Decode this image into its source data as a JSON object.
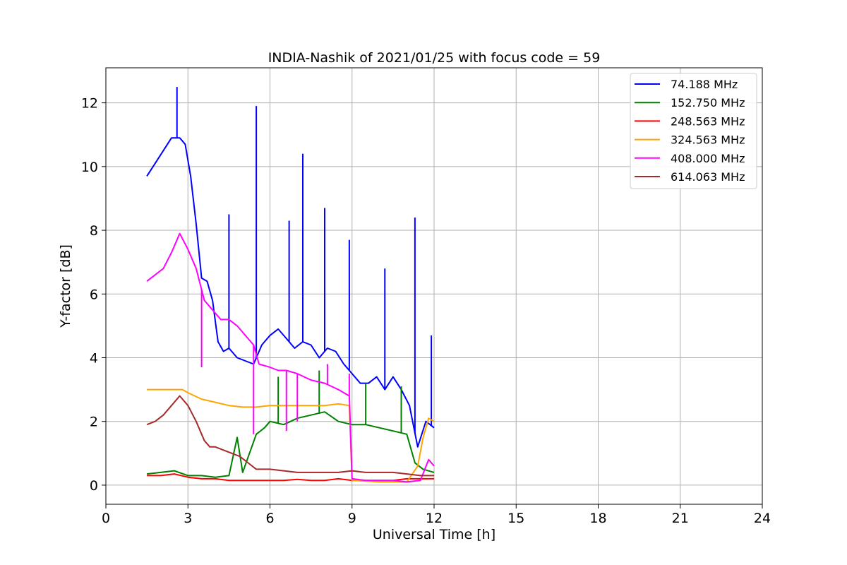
{
  "chart_data": {
    "type": "line",
    "title": "INDIA-Nashik of 2021/01/25 with focus code = 59",
    "xlabel": "Universal Time [h]",
    "ylabel": "Y-factor [dB]",
    "xlim": [
      0,
      24
    ],
    "ylim": [
      -0.6,
      13.1
    ],
    "xticks": [
      0,
      3,
      6,
      9,
      12,
      15,
      18,
      21,
      24
    ],
    "xtick_labels": [
      "0",
      "3",
      "6",
      "9",
      "12",
      "15",
      "18",
      "21",
      "24"
    ],
    "yticks": [
      0,
      2,
      4,
      6,
      8,
      10,
      12
    ],
    "ytick_labels": [
      "0",
      "2",
      "4",
      "6",
      "8",
      "10",
      "12"
    ],
    "grid": true,
    "legend_position": "top-right",
    "series": [
      {
        "name": " 74.188 MHz",
        "color": "#0000ff",
        "x": [
          1.5,
          1.8,
          2.1,
          2.4,
          2.7,
          2.9,
          3.1,
          3.3,
          3.5,
          3.7,
          3.9,
          4.1,
          4.3,
          4.5,
          4.8,
          5.1,
          5.4,
          5.7,
          6.0,
          6.3,
          6.6,
          6.9,
          7.2,
          7.5,
          7.8,
          8.1,
          8.4,
          8.7,
          9.0,
          9.3,
          9.6,
          9.9,
          10.2,
          10.5,
          10.8,
          11.1,
          11.4,
          11.7,
          12.0
        ],
        "y": [
          9.7,
          10.1,
          10.5,
          10.9,
          10.9,
          10.7,
          9.7,
          8.2,
          6.5,
          6.4,
          5.8,
          4.5,
          4.2,
          4.3,
          4.0,
          3.9,
          3.8,
          4.4,
          4.7,
          4.9,
          4.6,
          4.3,
          4.5,
          4.4,
          4.0,
          4.3,
          4.2,
          3.8,
          3.5,
          3.2,
          3.2,
          3.4,
          3.0,
          3.4,
          3.0,
          2.5,
          1.2,
          2.0,
          1.8
        ],
        "spikes": [
          [
            2.6,
            12.5
          ],
          [
            5.5,
            11.9
          ],
          [
            7.2,
            10.4
          ],
          [
            8.0,
            8.7
          ],
          [
            4.5,
            8.5
          ],
          [
            6.7,
            8.3
          ],
          [
            8.9,
            7.7
          ],
          [
            10.2,
            6.8
          ],
          [
            11.3,
            8.4
          ],
          [
            11.9,
            4.7
          ]
        ]
      },
      {
        "name": "152.750 MHz",
        "color": "#008000",
        "x": [
          1.5,
          2.0,
          2.5,
          3.0,
          3.5,
          4.0,
          4.5,
          4.8,
          5.0,
          5.5,
          5.8,
          6.0,
          6.5,
          7.0,
          7.5,
          8.0,
          8.5,
          9.0,
          9.5,
          10.0,
          10.5,
          11.0,
          11.3,
          11.6,
          12.0
        ],
        "y": [
          0.35,
          0.4,
          0.45,
          0.3,
          0.3,
          0.25,
          0.3,
          1.5,
          0.4,
          1.6,
          1.8,
          2.0,
          1.9,
          2.1,
          2.2,
          2.3,
          2.0,
          1.9,
          1.9,
          1.8,
          1.7,
          1.6,
          0.7,
          0.5,
          0.4
        ],
        "spikes": [
          [
            7.8,
            3.6
          ],
          [
            6.3,
            3.4
          ],
          [
            9.5,
            3.2
          ],
          [
            10.8,
            3.1
          ]
        ]
      },
      {
        "name": "248.563 MHz",
        "color": "#ff0000",
        "x": [
          1.5,
          2.0,
          2.5,
          3.0,
          3.5,
          4.0,
          4.5,
          5.0,
          5.5,
          6.0,
          6.5,
          7.0,
          7.5,
          8.0,
          8.5,
          9.0,
          9.5,
          10.0,
          10.5,
          11.0,
          11.5,
          12.0
        ],
        "y": [
          0.3,
          0.3,
          0.35,
          0.25,
          0.2,
          0.2,
          0.15,
          0.15,
          0.15,
          0.15,
          0.15,
          0.18,
          0.15,
          0.15,
          0.2,
          0.15,
          0.15,
          0.15,
          0.15,
          0.2,
          0.2,
          0.2
        ]
      },
      {
        "name": "324.563 MHz",
        "color": "#ffa500",
        "x": [
          1.5,
          2.0,
          2.5,
          2.8,
          3.0,
          3.5,
          4.0,
          4.5,
          5.0,
          5.5,
          6.0,
          6.5,
          7.0,
          7.5,
          8.0,
          8.5,
          8.9,
          9.0,
          10.0,
          11.0,
          11.4,
          11.6,
          11.8,
          12.0
        ],
        "y": [
          3.0,
          3.0,
          3.0,
          3.0,
          2.9,
          2.7,
          2.6,
          2.5,
          2.45,
          2.45,
          2.5,
          2.5,
          2.5,
          2.5,
          2.5,
          2.55,
          2.5,
          0.15,
          0.1,
          0.1,
          0.6,
          1.5,
          2.1,
          2.0
        ]
      },
      {
        "name": "408.000 MHz",
        "color": "#ff00ff",
        "x": [
          1.5,
          1.8,
          2.1,
          2.4,
          2.7,
          3.0,
          3.3,
          3.6,
          3.9,
          4.2,
          4.5,
          4.8,
          5.1,
          5.4,
          5.6,
          6.0,
          6.3,
          6.6,
          7.0,
          7.5,
          8.0,
          8.5,
          8.9,
          9.0,
          9.5,
          10.0,
          10.5,
          11.0,
          11.5,
          11.8,
          12.0
        ],
        "y": [
          6.4,
          6.6,
          6.8,
          7.3,
          7.9,
          7.4,
          6.8,
          5.8,
          5.5,
          5.2,
          5.2,
          5.0,
          4.7,
          4.4,
          3.8,
          3.7,
          3.6,
          3.6,
          3.5,
          3.3,
          3.2,
          3.0,
          2.8,
          0.2,
          0.15,
          0.15,
          0.15,
          0.1,
          0.15,
          0.8,
          0.6
        ],
        "spikes": [
          [
            3.5,
            3.7
          ],
          [
            5.4,
            1.6
          ],
          [
            6.6,
            1.7
          ],
          [
            7.0,
            2.0
          ],
          [
            8.1,
            3.8
          ],
          [
            8.9,
            3.5
          ]
        ]
      },
      {
        "name": "614.063 MHz",
        "color": "#a52a2a",
        "x": [
          1.5,
          1.8,
          2.1,
          2.4,
          2.7,
          3.0,
          3.3,
          3.6,
          3.8,
          4.0,
          4.3,
          4.6,
          4.9,
          5.2,
          5.5,
          5.8,
          6.0,
          6.5,
          7.0,
          7.5,
          8.0,
          8.5,
          9.0,
          9.5,
          10.0,
          10.5,
          11.0,
          11.5,
          12.0
        ],
        "y": [
          1.9,
          2.0,
          2.2,
          2.5,
          2.8,
          2.5,
          2.0,
          1.4,
          1.2,
          1.2,
          1.1,
          1.0,
          0.9,
          0.7,
          0.5,
          0.5,
          0.5,
          0.45,
          0.4,
          0.4,
          0.4,
          0.4,
          0.45,
          0.4,
          0.4,
          0.4,
          0.35,
          0.3,
          0.3
        ]
      }
    ]
  }
}
